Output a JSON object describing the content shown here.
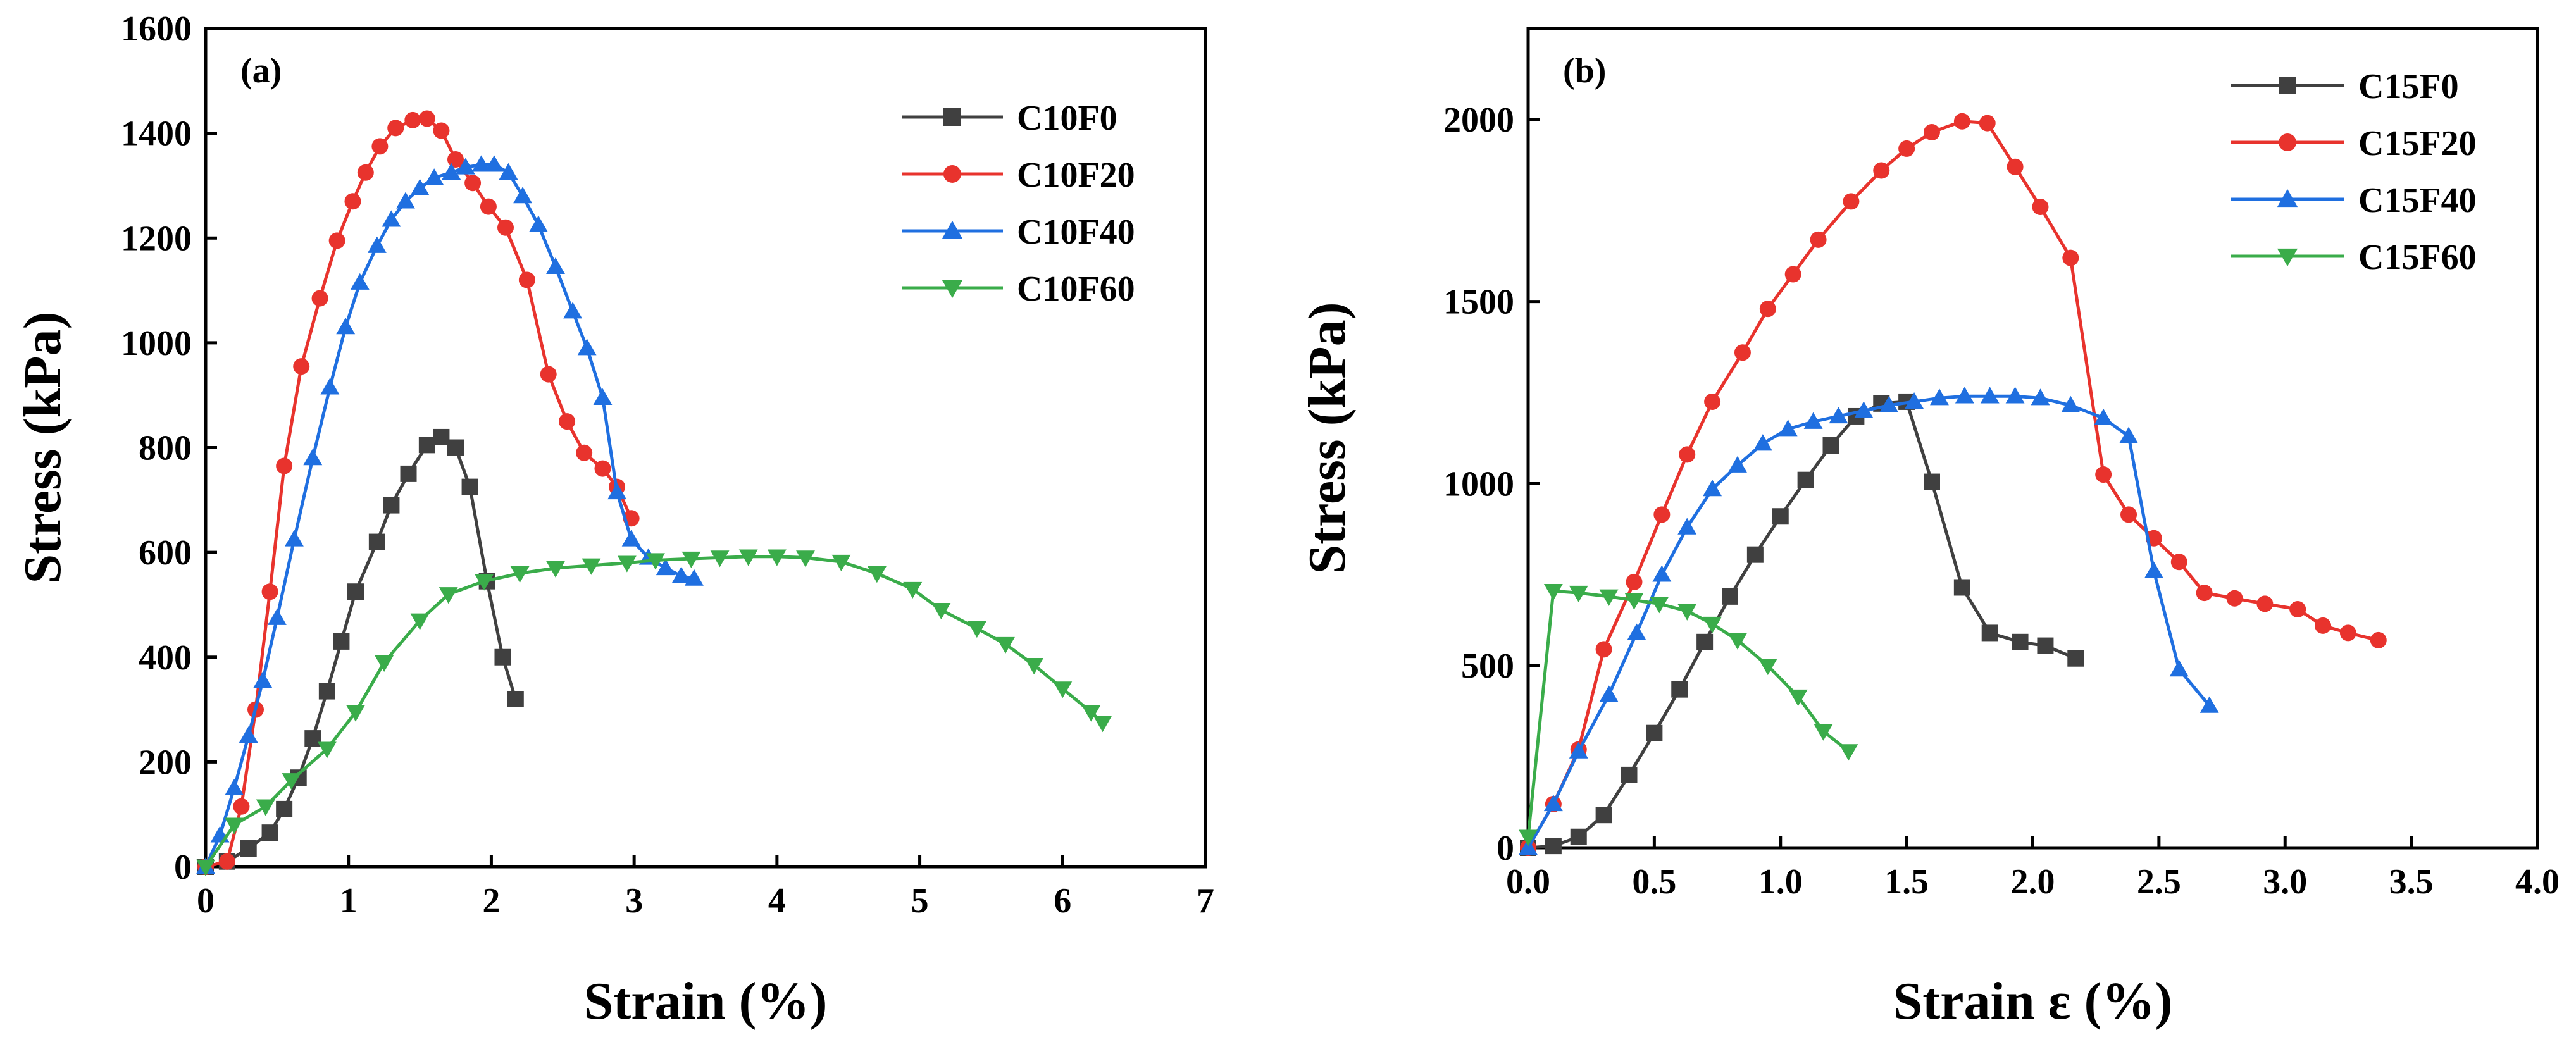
{
  "chart_data": [
    {
      "type": "line",
      "panel_label": "(a)",
      "xlabel": "Strain (%)",
      "ylabel": "Stress (kPa)",
      "xlim": [
        0,
        7
      ],
      "ylim": [
        0,
        1600
      ],
      "xticks": [
        "0",
        "1",
        "2",
        "3",
        "4",
        "5",
        "6",
        "7"
      ],
      "yticks": [
        "0",
        "200",
        "400",
        "600",
        "800",
        "1000",
        "1200",
        "1400",
        "1600"
      ],
      "legend_position": "top-right",
      "grid": false,
      "series": [
        {
          "name": "C10F0",
          "color": "#404040",
          "marker": "square",
          "x": [
            0,
            0.15,
            0.3,
            0.45,
            0.55,
            0.65,
            0.75,
            0.85,
            0.95,
            1.05,
            1.2,
            1.3,
            1.42,
            1.55,
            1.65,
            1.75,
            1.85,
            1.97,
            2.08,
            2.17
          ],
          "y": [
            0,
            10,
            35,
            65,
            110,
            170,
            245,
            335,
            430,
            525,
            620,
            690,
            750,
            805,
            820,
            800,
            725,
            545,
            400,
            320
          ]
        },
        {
          "name": "C10F20",
          "color": "#e8332d",
          "marker": "circle",
          "x": [
            0,
            0.15,
            0.25,
            0.35,
            0.45,
            0.55,
            0.67,
            0.8,
            0.92,
            1.03,
            1.12,
            1.22,
            1.33,
            1.45,
            1.55,
            1.65,
            1.75,
            1.87,
            1.98,
            2.1,
            2.25,
            2.4,
            2.53,
            2.65,
            2.78,
            2.88,
            2.98
          ],
          "y": [
            0,
            10,
            115,
            300,
            525,
            765,
            955,
            1085,
            1195,
            1270,
            1325,
            1375,
            1410,
            1425,
            1428,
            1405,
            1350,
            1305,
            1260,
            1220,
            1120,
            940,
            850,
            790,
            760,
            725,
            665
          ]
        },
        {
          "name": "C10F40",
          "color": "#1f6fe0",
          "marker": "triangle-up",
          "x": [
            0,
            0.1,
            0.2,
            0.3,
            0.4,
            0.5,
            0.62,
            0.75,
            0.87,
            0.98,
            1.08,
            1.2,
            1.3,
            1.4,
            1.5,
            1.6,
            1.72,
            1.82,
            1.93,
            2.02,
            2.12,
            2.22,
            2.33,
            2.45,
            2.57,
            2.67,
            2.78,
            2.88,
            2.98,
            3.1,
            3.22,
            3.33,
            3.42
          ],
          "y": [
            0,
            60,
            150,
            250,
            355,
            475,
            625,
            780,
            915,
            1030,
            1115,
            1185,
            1235,
            1270,
            1295,
            1315,
            1325,
            1335,
            1340,
            1340,
            1325,
            1280,
            1225,
            1145,
            1060,
            990,
            895,
            715,
            625,
            590,
            570,
            555,
            550
          ]
        },
        {
          "name": "C10F60",
          "color": "#3aac4a",
          "marker": "triangle-down",
          "x": [
            0,
            0.2,
            0.42,
            0.6,
            0.85,
            1.05,
            1.25,
            1.5,
            1.7,
            1.95,
            2.2,
            2.45,
            2.7,
            2.95,
            3.15,
            3.4,
            3.6,
            3.8,
            4.0,
            4.2,
            4.45,
            4.7,
            4.95,
            5.15,
            5.4,
            5.6,
            5.8,
            6.0,
            6.2,
            6.28
          ],
          "y": [
            0,
            80,
            115,
            165,
            225,
            295,
            390,
            470,
            520,
            545,
            560,
            570,
            575,
            580,
            585,
            588,
            590,
            592,
            592,
            590,
            582,
            560,
            530,
            490,
            455,
            425,
            385,
            340,
            295,
            275
          ]
        }
      ]
    },
    {
      "type": "line",
      "panel_label": "(b)",
      "xlabel": "Strain ε (%)",
      "ylabel": "Stress (kPa)",
      "xlim": [
        0,
        4.0
      ],
      "ylim": [
        0,
        2250
      ],
      "xticks": [
        "0.0",
        "0.5",
        "1.0",
        "1.5",
        "2.0",
        "2.5",
        "3.0",
        "3.5",
        "4.0"
      ],
      "ytick_values": [
        0,
        500,
        1000,
        1500,
        2000
      ],
      "yticks": [
        "0",
        "500",
        "1000",
        "1500",
        "2000"
      ],
      "legend_position": "top-right",
      "grid": false,
      "series": [
        {
          "name": "C15F0",
          "color": "#404040",
          "marker": "square",
          "x": [
            0,
            0.1,
            0.2,
            0.3,
            0.4,
            0.5,
            0.6,
            0.7,
            0.8,
            0.9,
            1.0,
            1.1,
            1.2,
            1.3,
            1.4,
            1.5,
            1.6,
            1.72,
            1.83,
            1.95,
            2.05,
            2.17
          ],
          "y": [
            0,
            5,
            30,
            90,
            200,
            315,
            435,
            565,
            690,
            805,
            910,
            1010,
            1105,
            1185,
            1220,
            1225,
            1005,
            715,
            590,
            565,
            555,
            520
          ]
        },
        {
          "name": "C15F20",
          "color": "#e8332d",
          "marker": "circle",
          "x": [
            0,
            0.1,
            0.2,
            0.3,
            0.42,
            0.53,
            0.63,
            0.73,
            0.85,
            0.95,
            1.05,
            1.15,
            1.28,
            1.4,
            1.5,
            1.6,
            1.72,
            1.82,
            1.93,
            2.03,
            2.15,
            2.28,
            2.38,
            2.48,
            2.58,
            2.68,
            2.8,
            2.92,
            3.05,
            3.15,
            3.25,
            3.37
          ],
          "y": [
            0,
            120,
            270,
            545,
            730,
            915,
            1080,
            1225,
            1360,
            1480,
            1575,
            1670,
            1775,
            1860,
            1920,
            1965,
            1995,
            1990,
            1870,
            1760,
            1620,
            1025,
            915,
            850,
            785,
            700,
            685,
            670,
            655,
            610,
            590,
            570
          ]
        },
        {
          "name": "C15F40",
          "color": "#1f6fe0",
          "marker": "triangle-up",
          "x": [
            0,
            0.1,
            0.2,
            0.32,
            0.43,
            0.53,
            0.63,
            0.73,
            0.83,
            0.93,
            1.03,
            1.13,
            1.23,
            1.33,
            1.43,
            1.53,
            1.63,
            1.73,
            1.83,
            1.93,
            2.03,
            2.15,
            2.28,
            2.38,
            2.48,
            2.58,
            2.7
          ],
          "y": [
            0,
            120,
            265,
            420,
            590,
            750,
            880,
            985,
            1050,
            1110,
            1150,
            1170,
            1185,
            1200,
            1215,
            1225,
            1235,
            1240,
            1240,
            1240,
            1235,
            1215,
            1180,
            1130,
            760,
            490,
            390
          ]
        },
        {
          "name": "C15F60",
          "color": "#3aac4a",
          "marker": "triangle-down",
          "x": [
            0,
            0.1,
            0.2,
            0.32,
            0.42,
            0.52,
            0.63,
            0.73,
            0.83,
            0.95,
            1.07,
            1.17,
            1.27
          ],
          "y": [
            30,
            705,
            700,
            690,
            680,
            670,
            650,
            615,
            570,
            500,
            415,
            320,
            265
          ]
        }
      ]
    }
  ]
}
